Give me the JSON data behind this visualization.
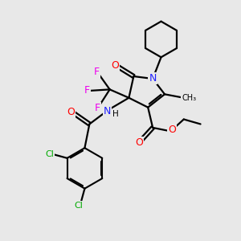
{
  "background_color": "#e8e8e8",
  "figure_size": [
    3.0,
    3.0
  ],
  "dpi": 100,
  "colors": {
    "C": "#000000",
    "N": "#2020ff",
    "O": "#ff0000",
    "F": "#ee00ee",
    "Cl": "#00aa00",
    "H": "#000000",
    "bond": "#000000"
  },
  "xlim": [
    0,
    10
  ],
  "ylim": [
    0,
    10
  ]
}
